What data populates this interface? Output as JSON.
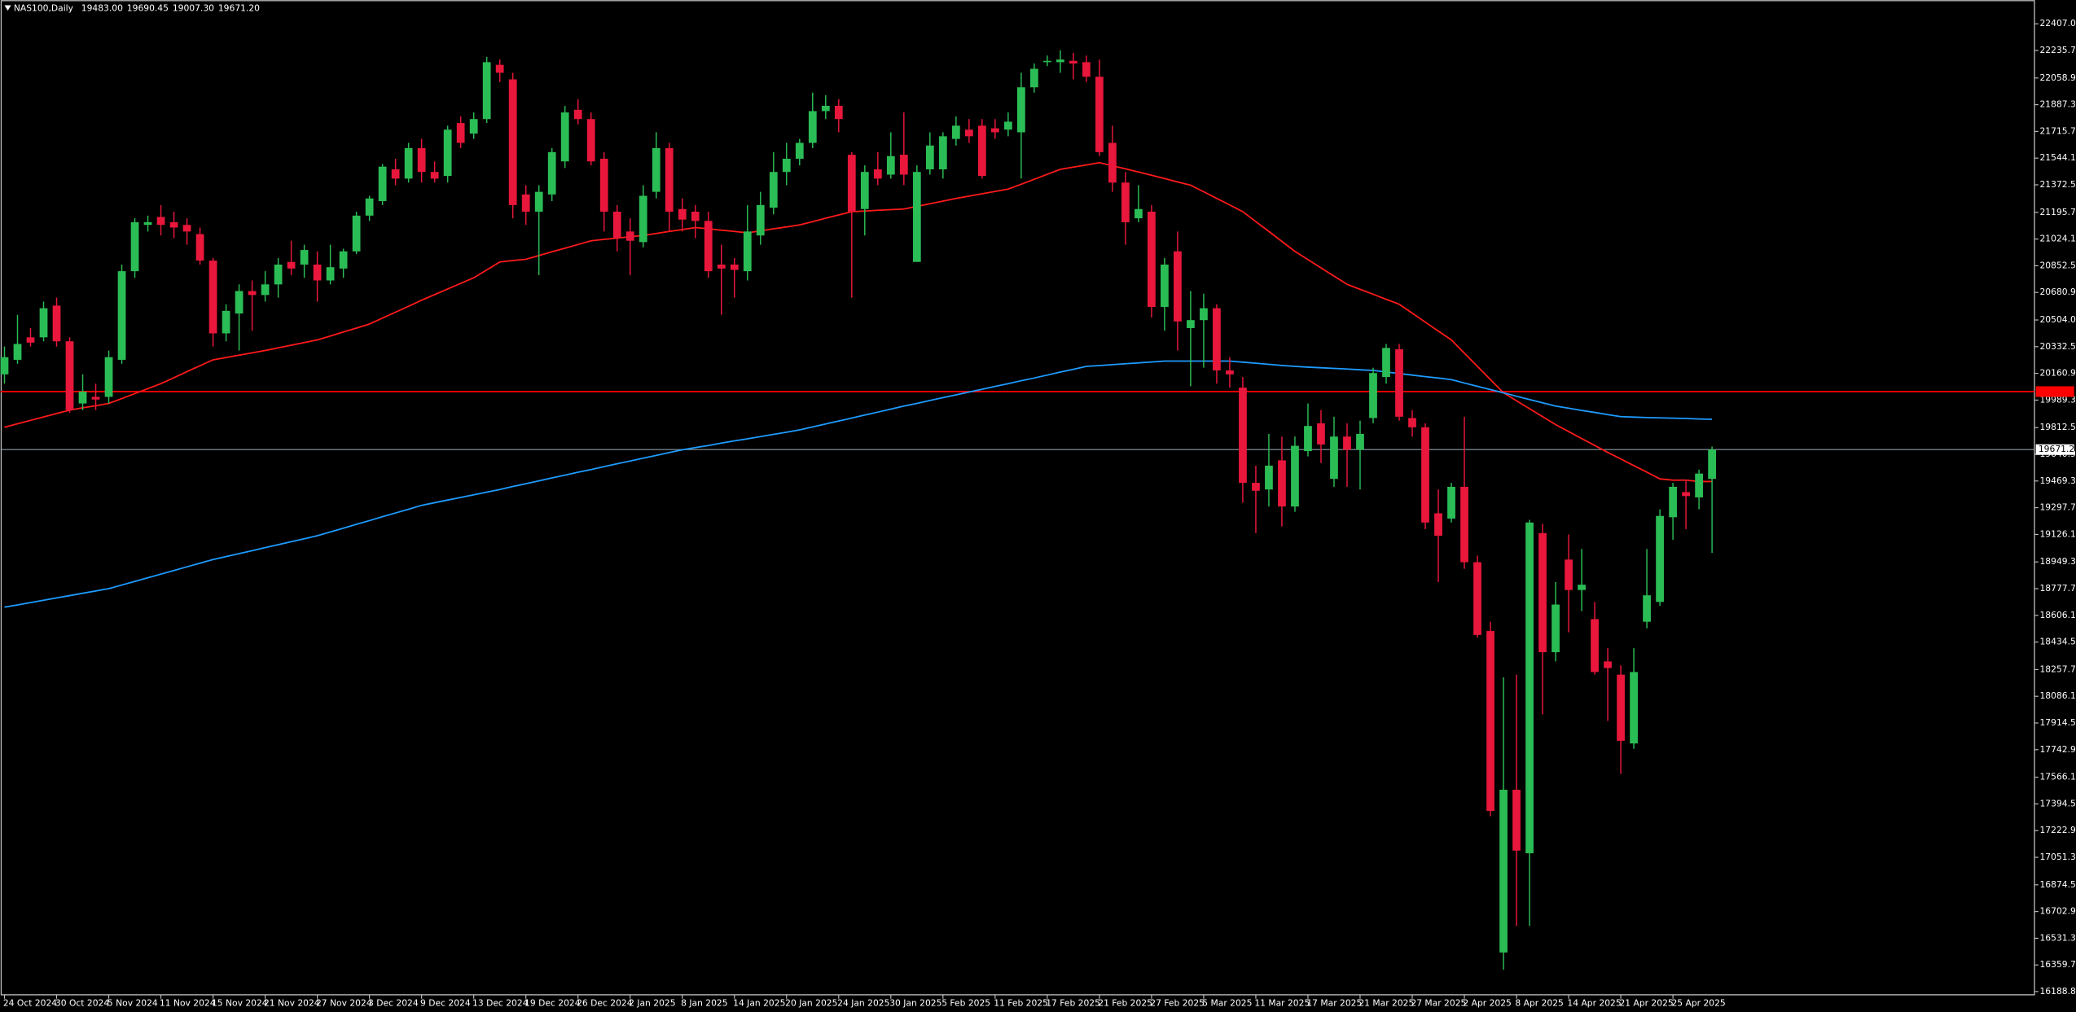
{
  "chart_data": {
    "type": "candlestick",
    "title": "NAS100,Daily",
    "header_labels": [
      "19483.00",
      "19690.45",
      "19007.30",
      "19671.20"
    ],
    "up_color": "#2bbd55",
    "down_color": "#e8173b",
    "categories": [
      "24 Oct 2024",
      null,
      null,
      null,
      "30 Oct 2024",
      null,
      null,
      null,
      "5 Nov 2024",
      null,
      null,
      null,
      "11 Nov 2024",
      null,
      null,
      null,
      "15 Nov 2024",
      null,
      null,
      null,
      "21 Nov 2024",
      null,
      null,
      null,
      "27 Nov 2024",
      null,
      null,
      null,
      "3 Dec 2024",
      null,
      null,
      null,
      "9 Dec 2024",
      null,
      null,
      null,
      "13 Dec 2024",
      null,
      null,
      null,
      "19 Dec 2024",
      null,
      null,
      null,
      "26 Dec 2024",
      null,
      null,
      null,
      "2 Jan 2025",
      null,
      null,
      null,
      "8 Jan 2025",
      null,
      null,
      null,
      "14 Jan 2025",
      null,
      null,
      null,
      "20 Jan 2025",
      null,
      null,
      null,
      "24 Jan 2025",
      null,
      null,
      null,
      "30 Jan 2025",
      null,
      null,
      null,
      "5 Feb 2025",
      null,
      null,
      null,
      "11 Feb 2025",
      null,
      null,
      null,
      "17 Feb 2025",
      null,
      null,
      null,
      "21 Feb 2025",
      null,
      null,
      null,
      "27 Feb 2025",
      null,
      null,
      null,
      "5 Mar 2025",
      null,
      null,
      null,
      "11 Mar 2025",
      null,
      null,
      null,
      "17 Mar 2025",
      null,
      null,
      null,
      "21 Mar 2025",
      null,
      null,
      null,
      "27 Mar 2025",
      null,
      null,
      null,
      "2 Apr 2025",
      null,
      null,
      null,
      "8 Apr 2025",
      null,
      null,
      null,
      "14 Apr 2025",
      null,
      null,
      null,
      "21 Apr 2025",
      null,
      null,
      null,
      "25 Apr 2025",
      null,
      null,
      null
    ],
    "open": [
      20154.5,
      20248,
      20392.5,
      20392.5,
      20596.5,
      20367,
      19967.5,
      20010,
      20010,
      20248,
      20817.5,
      21115,
      21166,
      21132,
      21115,
      21055.5,
      20885.5,
      20418,
      20545.5,
      20690,
      20664.5,
      20732.5,
      20877,
      20860,
      20860,
      20758,
      20834.5,
      20945,
      21174.5,
      21268,
      21472,
      21412.5,
      21608,
      21455,
      21429.5,
      21769.5,
      21701.5,
      21795,
      22143.5,
      22050,
      21310.5,
      21200,
      21310.5,
      21523,
      21854.5,
      21795,
      21540,
      21200,
      21072.5,
      21004.5,
      21327.5,
      21608,
      21217,
      21200,
      21140.5,
      20860,
      20860,
      20817.5,
      21047,
      21225.5,
      21455,
      21540,
      21642,
      21846,
      21880,
      21565.5,
      21217,
      21472,
      21438,
      21565.5,
      20877,
      21472,
      21472,
      21667.5,
      21727,
      21752.5,
      21735.5,
      21727,
      21710,
      21999,
      22160.5,
      22160.5,
      22169,
      22160.5,
      22067,
      21642,
      21387,
      21157.5,
      21200,
      20588,
      20945,
      20452,
      20503,
      20579.5,
      20180,
      20069.5,
      19457.5,
      19415,
      19602,
      19305.5,
      19661.5,
      19840,
      19483,
      19755,
      19670,
      19874,
      20137.5,
      20316,
      19874,
      19814.5,
      19262,
      19228,
      19432,
      18947.5,
      18505.5,
      16440,
      17485.5,
      17077.5,
      19134.5,
      18369.5,
      18964.5,
      18769,
      18582,
      18310,
      18225,
      17783,
      18565,
      18692.5,
      19236.5,
      19398,
      19364,
      19483
    ],
    "high": [
      20333,
      20537,
      20452,
      20622,
      20647.5,
      20392.5,
      20154.5,
      20095,
      20307.5,
      20860,
      21157.5,
      21174.5,
      21242.5,
      21200,
      21157.5,
      21098,
      20902.5,
      20605,
      20732.5,
      20758,
      20817.5,
      20902.5,
      21013,
      20987.5,
      20945,
      20987.5,
      20962,
      21200,
      21302,
      21506,
      21540,
      21642,
      21667.5,
      21523,
      21752.5,
      21812,
      21837.5,
      22194.5,
      22177.5,
      22092.5,
      21370,
      21370,
      21608,
      21880,
      21922.5,
      21837.5,
      21582.5,
      21242.5,
      21157.5,
      21370,
      21710,
      21642,
      21285,
      21242.5,
      21200,
      20987.5,
      20902.5,
      21242.5,
      21327.5,
      21582.5,
      21642,
      21667.5,
      21965,
      21948,
      21922.5,
      21582.5,
      21497.5,
      21582.5,
      21710,
      21837.5,
      21497.5,
      21710,
      21710,
      21812,
      21795,
      21795,
      21795,
      21837.5,
      22092.5,
      22152,
      22203,
      22237,
      22220,
      22203,
      22177.5,
      21752.5,
      21455,
      21370,
      21242.5,
      20902.5,
      21072.5,
      20690,
      20673,
      20605,
      20265,
      20137.5,
      19568,
      19772,
      19755,
      19755,
      19967.5,
      19925,
      19882.5,
      19840,
      19857,
      20197,
      20350,
      20350,
      19925,
      19840,
      19415,
      19457.5,
      19882.5,
      18990,
      18565,
      18208,
      18225,
      19219.5,
      19194,
      18820,
      19126,
      19032.5,
      18692.5,
      18395,
      18284.5,
      18395,
      19032.5,
      19287.5,
      19457.5,
      19474.5,
      19542.5,
      19690.45
    ],
    "low": [
      20095,
      20222.5,
      20333,
      20367,
      20333,
      19908,
      19925,
      19925,
      19967.5,
      20222.5,
      20775,
      21072.5,
      21047,
      21030,
      20987.5,
      20860,
      20333,
      20367,
      20307.5,
      20435,
      20622,
      20647.5,
      20792,
      20775,
      20622,
      20732.5,
      20775,
      20928,
      21140.5,
      21242.5,
      21370,
      21387,
      21387,
      21387,
      21387,
      21608,
      21667.5,
      21769.5,
      22033,
      21157.5,
      21115,
      20792,
      21268,
      21480.5,
      21761,
      21497.5,
      21072.5,
      20945,
      20792,
      20970.5,
      21285,
      21072.5,
      21072.5,
      21030,
      20775,
      20537,
      20647.5,
      20758,
      20987.5,
      21183,
      21370,
      21497.5,
      21608,
      21795,
      21710,
      20647.5,
      21047,
      21370,
      21412.5,
      21370,
      20877,
      21438,
      21412.5,
      21625,
      21642,
      21412.5,
      21667.5,
      21684.5,
      21412.5,
      21965,
      22135,
      22092.5,
      22050,
      22033,
      21557,
      21327.5,
      20987.5,
      21132,
      20520,
      20435,
      20307.5,
      20078,
      20197,
      20095,
      20069.5,
      19330,
      19134.5,
      19305.5,
      19177,
      19271.5,
      19627.5,
      19585,
      19432,
      19432,
      19415,
      19840,
      20095,
      19857,
      19755,
      19160,
      18820,
      19202.5,
      18905,
      18463,
      17315.5,
      16329.5,
      16610,
      16610,
      17970,
      18310,
      18497,
      18633,
      18225,
      17927.5,
      17587.5,
      17749,
      18522.5,
      18667,
      19092,
      19160,
      19287.5,
      19007.3
    ],
    "close": [
      20265,
      20350,
      20358.5,
      20579.5,
      20367,
      19925,
      20044,
      19993,
      20265,
      20817.5,
      21132,
      21132,
      21115,
      21098,
      21072.5,
      20885.5,
      20418,
      20562.5,
      20690,
      20664.5,
      20732.5,
      20860,
      20834.5,
      20953.5,
      20758,
      20843,
      20945,
      21174.5,
      21285,
      21489,
      21412.5,
      21608,
      21455,
      21412.5,
      21727,
      21642,
      21795,
      22160.5,
      22092.5,
      21242.5,
      21200,
      21327.5,
      21582.5,
      21837.5,
      21795,
      21523,
      21200,
      21030,
      21013,
      21302,
      21608,
      21200,
      21149,
      21140.5,
      20817.5,
      20834.5,
      20826,
      21072.5,
      21242.5,
      21455,
      21540,
      21642,
      21846,
      21880,
      21795,
      21200,
      21455,
      21412.5,
      21557,
      21438,
      21455,
      21625,
      21684.5,
      21752.5,
      21684.5,
      21429.5,
      21710,
      21778,
      21999,
      22118,
      22169,
      22177.5,
      22152,
      22067,
      21582.5,
      21387,
      21132,
      21217,
      20588,
      20860,
      20494.5,
      20503,
      20579.5,
      20180,
      20154.5,
      19457.5,
      19406.5,
      19568,
      19305.5,
      19695.5,
      19823,
      19704,
      19755,
      19670,
      19772,
      20163,
      20324.5,
      19882.5,
      19814.5,
      19202.5,
      19117.5,
      19432,
      18947.5,
      18480,
      17349.5,
      17485.5,
      17094.5,
      19202.5,
      18369.5,
      18675.5,
      18769,
      18803,
      18242,
      18267.5,
      17800,
      18242,
      18735,
      19245,
      19432,
      19372.5,
      19517,
      19671.2
    ],
    "indicators": [
      {
        "color": "#ff1a1a",
        "values": [
          19815,
          19837,
          19859,
          19881,
          19903,
          19925,
          19940,
          19953,
          19968,
          19999,
          20031,
          20063,
          20095,
          20133,
          20172,
          20210,
          20248,
          20263,
          20278,
          20293,
          20308,
          20325,
          20342,
          20359,
          20376,
          20401,
          20427,
          20452,
          20478,
          20516,
          20554,
          20592,
          20631,
          20667,
          20703,
          20739,
          20775,
          20826,
          20877,
          20886,
          20894,
          20918,
          20942,
          20965,
          20989,
          21013,
          21022,
          21030,
          21039,
          21047,
          21060,
          21073,
          21085,
          21098,
          21090,
          21081,
          21073,
          21064,
          21077,
          21090,
          21102,
          21115,
          21136,
          21158,
          21179,
          21200,
          21204,
          21209,
          21213,
          21217,
          21234,
          21251,
          21268,
          21285,
          21300,
          21315,
          21330,
          21345,
          21376,
          21408,
          21440,
          21472,
          21486,
          21500,
          21515,
          21495,
          21475,
          21455,
          21434,
          21413,
          21391,
          21370,
          21328,
          21285,
          21243,
          21200,
          21136,
          21073,
          21009,
          20945,
          20892,
          20839,
          20786,
          20733,
          20701,
          20669,
          20637,
          20605,
          20548,
          20490,
          20433,
          20376,
          20291,
          20206,
          20121,
          20036,
          19985,
          19934,
          19883,
          19832,
          19787,
          19742,
          19698,
          19653,
          19611,
          19568,
          19526,
          19483,
          19475,
          19475,
          19466,
          19466
        ]
      },
      {
        "color": "#1e9bff",
        "values": [
          18659,
          18673,
          18688,
          18703,
          18718,
          18733,
          18748,
          18763,
          18778,
          18801,
          18824,
          18848,
          18871,
          18894,
          18918,
          18941,
          18965,
          18984,
          19003,
          19022,
          19041,
          19060,
          19079,
          19098,
          19118,
          19142,
          19166,
          19191,
          19215,
          19240,
          19264,
          19288,
          19313,
          19330,
          19347,
          19364,
          19381,
          19398,
          19415,
          19434,
          19452,
          19470,
          19489,
          19507,
          19526,
          19543,
          19562,
          19580,
          19598,
          19616,
          19634,
          19652,
          19670,
          19684,
          19697,
          19713,
          19727,
          19740,
          19755,
          19769,
          19783,
          19798,
          19817,
          19836,
          19855,
          19874,
          19893,
          19912,
          19931,
          19951,
          19968,
          19987,
          20005,
          20023,
          20041,
          20059,
          20077,
          20095,
          20114,
          20131,
          20150,
          20169,
          20187,
          20206,
          20211,
          20217,
          20223,
          20228,
          20234,
          20240,
          20240,
          20240,
          20240,
          20240,
          20240,
          20233,
          20226,
          20219,
          20212,
          20206,
          20201,
          20197,
          20193,
          20189,
          20184,
          20180,
          20170,
          20160,
          20150,
          20140,
          20131,
          20121,
          20099,
          20078,
          20057,
          20036,
          20014,
          19993,
          19972,
          19951,
          19937,
          19923,
          19910,
          19896,
          19883,
          19880,
          19877,
          19875,
          19873,
          19871,
          19868,
          19866
        ]
      }
    ],
    "levels": [
      {
        "value": 20044,
        "color": "#ff0000"
      }
    ],
    "price_line": {
      "value": 19671.2,
      "label": "19671.20",
      "color": "#8a9ea8"
    },
    "ylim": [
      16168,
      22560
    ],
    "yticks": [
      {
        "value": 22407,
        "label": "22407.00"
      },
      {
        "value": 22235.7,
        "label": "22235.70"
      },
      {
        "value": 22058.9,
        "label": "22058.90"
      },
      {
        "value": 21887.3,
        "label": "21887.30"
      },
      {
        "value": 21715.7,
        "label": "21715.70"
      },
      {
        "value": 21544.1,
        "label": "21544.10"
      },
      {
        "value": 21372.5,
        "label": "21372.50"
      },
      {
        "value": 21195.7,
        "label": "21195.70"
      },
      {
        "value": 21024.1,
        "label": "21024.10"
      },
      {
        "value": 20852.5,
        "label": "20852.50"
      },
      {
        "value": 20680.9,
        "label": "20680.90"
      },
      {
        "value": 20504,
        "label": "20504.00"
      },
      {
        "value": 20332.5,
        "label": "20332.50"
      },
      {
        "value": 20160.9,
        "label": "20160.90"
      },
      {
        "value": 19989.3,
        "label": "19989.30"
      },
      {
        "value": 19812.5,
        "label": "19812.50"
      },
      {
        "value": 19640.9,
        "label": "19640.90"
      },
      {
        "value": 19469.3,
        "label": "19469.30"
      },
      {
        "value": 19297.7,
        "label": "19297.70"
      },
      {
        "value": 19126.1,
        "label": "19126.10"
      },
      {
        "value": 18949.3,
        "label": "18949.30"
      },
      {
        "value": 18777.7,
        "label": "18777.70"
      },
      {
        "value": 18606.1,
        "label": "18606.10"
      },
      {
        "value": 18434.5,
        "label": "18434.50"
      },
      {
        "value": 18257.7,
        "label": "18257.70"
      },
      {
        "value": 18086.1,
        "label": "18086.10"
      },
      {
        "value": 17914.5,
        "label": "17914.50"
      },
      {
        "value": 17742.9,
        "label": "17742.90"
      },
      {
        "value": 17566.1,
        "label": "17566.10"
      },
      {
        "value": 17394.5,
        "label": "17394.50"
      },
      {
        "value": 17222.9,
        "label": "17222.90"
      },
      {
        "value": 17051.3,
        "label": "17051.30"
      },
      {
        "value": 16874.5,
        "label": "16874.50"
      },
      {
        "value": 16702.9,
        "label": "16702.90"
      },
      {
        "value": 16531.3,
        "label": "16531.30"
      },
      {
        "value": 16359.7,
        "label": "16359.70"
      },
      {
        "value": 16188.8,
        "label": "16188.80"
      }
    ]
  }
}
